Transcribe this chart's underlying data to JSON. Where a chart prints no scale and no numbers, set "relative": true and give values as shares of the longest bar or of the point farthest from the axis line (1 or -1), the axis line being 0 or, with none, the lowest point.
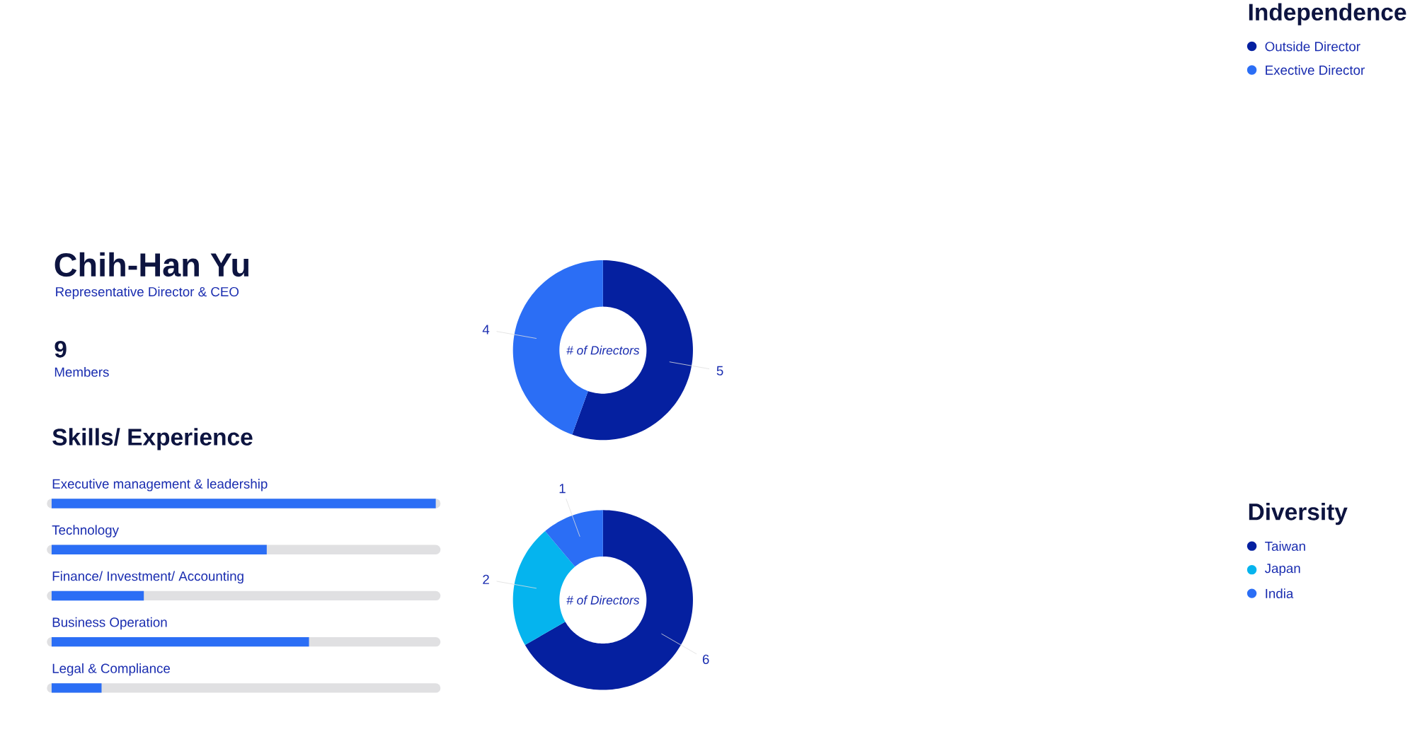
{
  "chart_data": [
    {
      "type": "other",
      "title": "Chih-Han Yu",
      "subtitle": "Representative Director & CEO",
      "annotations": [
        "9",
        "Members"
      ]
    },
    {
      "type": "bar",
      "orientation": "horizontal",
      "relative": true,
      "title": "Skills/ Experience",
      "categories": [
        "Executive management & leadership",
        "Technology",
        "Finance/ Investment/ Accounting",
        "Business Operation",
        "Legal & Compliance"
      ],
      "values": [
        1,
        0.56,
        0.24,
        0.67,
        0.13
      ],
      "color": "#2b6ef5"
    },
    {
      "type": "donut",
      "title": "Independence",
      "categories": [
        "Outside Director",
        "Exective Director"
      ],
      "values": [
        5,
        4
      ],
      "colors": [
        "#0520a0",
        "#2b6ef5"
      ],
      "data_labels": true,
      "legend": "right",
      "annotations": [
        "# of Directors"
      ]
    },
    {
      "type": "donut",
      "title": "Diversity",
      "categories": [
        "Taiwan",
        "Japan",
        "India"
      ],
      "values": [
        6,
        2,
        1
      ],
      "colors": [
        "#0520a0",
        "#05b4ee",
        "#2b6ef5"
      ],
      "data_labels": true,
      "legend": "right",
      "annotations": [
        "# of Directors"
      ]
    }
  ]
}
